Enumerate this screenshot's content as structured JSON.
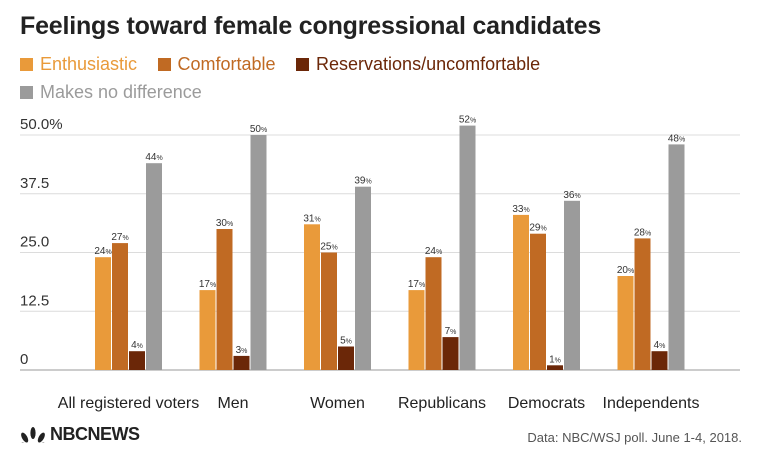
{
  "title": "Feelings toward female congressional candidates",
  "legend": [
    {
      "label": "Enthusiastic",
      "color": "#E99A3A"
    },
    {
      "label": "Comfortable",
      "color": "#C06A23"
    },
    {
      "label": "Reservations/uncomfortable",
      "color": "#6B2708"
    },
    {
      "label": "Makes no difference",
      "color": "#9B9B9B"
    }
  ],
  "logo": {
    "text": "NBCNEWS",
    "icon": "nbc-peacock-icon"
  },
  "source": "Data: NBC/WSJ poll. June 1-4, 2018.",
  "chart_data": {
    "type": "bar",
    "categories": [
      "All registered voters",
      "Men",
      "Women",
      "Republicans",
      "Democrats",
      "Independents"
    ],
    "series": [
      {
        "name": "Enthusiastic",
        "color": "#E99A3A",
        "values": [
          24,
          17,
          31,
          17,
          33,
          20
        ]
      },
      {
        "name": "Comfortable",
        "color": "#C06A23",
        "values": [
          27,
          30,
          25,
          24,
          29,
          28
        ]
      },
      {
        "name": "Reservations/uncomfortable",
        "color": "#6B2708",
        "values": [
          4,
          3,
          5,
          7,
          1,
          4
        ]
      },
      {
        "name": "Makes no difference",
        "color": "#9B9B9B",
        "values": [
          44,
          50,
          39,
          52,
          36,
          48
        ]
      }
    ],
    "yticks": [
      "0",
      "12.5",
      "25.0",
      "37.5",
      "50.0%"
    ],
    "ytick_values": [
      0,
      12.5,
      25,
      37.5,
      50
    ],
    "ylim": [
      0,
      50
    ],
    "value_suffix": "%",
    "grid": true,
    "legend_position": "top-left"
  }
}
